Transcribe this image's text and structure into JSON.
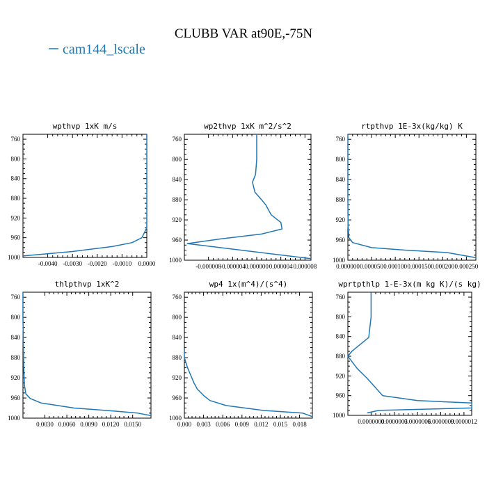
{
  "figure": {
    "title": "CLUBB VAR at90E,-75N",
    "legend": [
      {
        "name": "cam144_lscale",
        "color": "#1f77b4"
      }
    ]
  },
  "chart_data": [
    {
      "type": "line",
      "title": "wpthvp  1xK m/s",
      "xlim": [
        -0.005,
        0.0
      ],
      "ylim": [
        1000,
        750
      ],
      "xticks": [
        -0.004,
        -0.003,
        -0.002,
        -0.001,
        0.0
      ],
      "xtick_labels": [
        "-0.0040",
        "-0.0030",
        "-0.0020",
        "-0.0010",
        "0.0000"
      ],
      "yticks": [
        760,
        800,
        840,
        880,
        920,
        960,
        1000
      ],
      "series": [
        {
          "name": "cam144_lscale",
          "x": [
            0.0,
            0.0,
            0.0,
            0.0,
            0.0,
            -0.0001,
            -0.0002,
            -0.0006,
            -0.0014,
            -0.003,
            -0.005
          ],
          "y": [
            750,
            800,
            850,
            900,
            940,
            950,
            960,
            970,
            978,
            988,
            997
          ]
        }
      ]
    },
    {
      "type": "line",
      "title": "wp2thvp  1xK m^2/s^2",
      "xlim": [
        -1.2e-05,
        9e-06
      ],
      "ylim": [
        1000,
        750
      ],
      "xticks": [
        -8e-06,
        -4e-06,
        0.0,
        4e-06,
        8e-06
      ],
      "xtick_labels": [
        "-0.000008",
        "-0.000004",
        "0.000000",
        "0.000004",
        "0.000008"
      ],
      "yticks": [
        760,
        800,
        840,
        880,
        920,
        960,
        1000
      ],
      "series": [
        {
          "name": "cam144_lscale",
          "x": [
            0.0,
            0.0,
            -2e-07,
            -7e-07,
            -3e-07,
            8e-07,
            1.5e-06,
            2.4e-06,
            4e-06,
            4.2e-06,
            8e-07,
            -6.2e-06,
            -1.15e-05,
            9e-06
          ],
          "y": [
            750,
            800,
            830,
            845,
            865,
            880,
            890,
            910,
            925,
            938,
            948,
            958,
            967,
            997
          ]
        }
      ]
    },
    {
      "type": "line",
      "title": "rtpthvp  1E-3x(kg/kg) K",
      "xlim": [
        0.0,
        0.00027
      ],
      "ylim": [
        1000,
        750
      ],
      "xticks": [
        0.0,
        5e-05,
        0.0001,
        0.00015,
        0.0002,
        0.00025
      ],
      "xtick_labels": [
        "0.000000",
        "0.000050",
        "0.000100",
        "0.000150",
        "0.000200",
        "0.000250"
      ],
      "yticks": [
        760,
        800,
        840,
        880,
        920,
        960,
        1000
      ],
      "series": [
        {
          "name": "cam144_lscale",
          "x": [
            0.0,
            0.0,
            0.0,
            5e-07,
            2e-06,
            6e-06,
            1e-05,
            5e-05,
            0.00012,
            0.00021,
            0.00027
          ],
          "y": [
            750,
            800,
            880,
            930,
            955,
            960,
            965,
            975,
            980,
            985,
            995
          ]
        }
      ]
    },
    {
      "type": "line",
      "title": "thlpthvp  1xK^2",
      "xlim": [
        0.0,
        0.0175
      ],
      "ylim": [
        1000,
        750
      ],
      "xticks": [
        0.003,
        0.006,
        0.009,
        0.012,
        0.015
      ],
      "xtick_labels": [
        "0.0030",
        "0.0060",
        "0.0090",
        "0.0120",
        "0.0150"
      ],
      "yticks": [
        760,
        800,
        840,
        880,
        920,
        960,
        1000
      ],
      "series": [
        {
          "name": "cam144_lscale",
          "x": [
            0.0,
            0.0,
            0.0001,
            0.0002,
            0.0004,
            0.001,
            0.0025,
            0.007,
            0.0125,
            0.0157,
            0.0175
          ],
          "y": [
            750,
            800,
            900,
            935,
            952,
            961,
            970,
            980,
            986,
            990,
            995
          ]
        }
      ]
    },
    {
      "type": "line",
      "title": "wp4  1x(m^4)/(s^4)",
      "xlim": [
        0.0,
        0.02
      ],
      "ylim": [
        1000,
        750
      ],
      "xticks": [
        0.0,
        0.003,
        0.006,
        0.009,
        0.012,
        0.015,
        0.018
      ],
      "xtick_labels": [
        "0.000",
        "0.003",
        "0.006",
        "0.009",
        "0.012",
        "0.015",
        "0.018"
      ],
      "yticks": [
        760,
        800,
        840,
        880,
        920,
        960,
        1000
      ],
      "series": [
        {
          "name": "cam144_lscale",
          "x": [
            0.0,
            0.0,
            0.0005,
            0.001,
            0.0015,
            0.002,
            0.003,
            0.004,
            0.0065,
            0.0125,
            0.0185,
            0.02
          ],
          "y": [
            865,
            880,
            900,
            915,
            930,
            942,
            955,
            965,
            975,
            985,
            990,
            997
          ]
        }
      ]
    },
    {
      "type": "line",
      "title": "wprtpthlp  1-E-3x(m kg K)/(s kg)",
      "xlim": [
        -3e-07,
        1.3e-06
      ],
      "ylim": [
        1000,
        750
      ],
      "xticks": [
        0.0,
        3e-07,
        6e-07,
        9e-07,
        1.2e-06
      ],
      "xtick_labels": [
        "0.0000000",
        "0.0000003",
        "0.0000006",
        "0.0000009",
        "0.0000012"
      ],
      "yticks": [
        760,
        800,
        840,
        880,
        920,
        960,
        1000
      ],
      "series": [
        {
          "name": "cam144_lscale",
          "x": [
            0.0,
            0.0,
            -3e-08,
            -2.5e-07,
            -3e-07,
            -1.8e-07,
            -5e-08,
            1.5e-07,
            6e-07,
            1.3e-06,
            1.3e-06,
            1e-07,
            -5e-08
          ],
          "y": [
            750,
            800,
            842,
            870,
            880,
            905,
            925,
            960,
            970,
            975,
            985,
            990,
            995
          ]
        }
      ]
    }
  ]
}
